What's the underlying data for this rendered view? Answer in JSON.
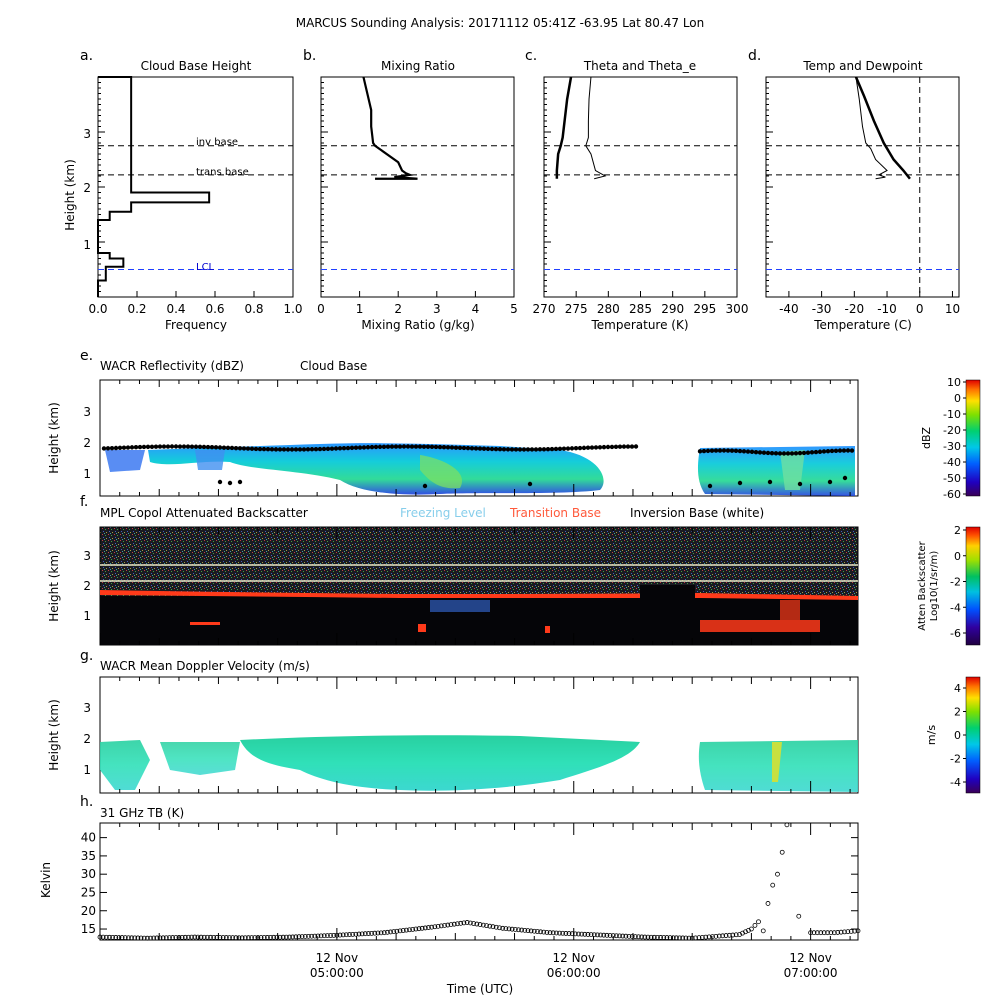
{
  "title": "MARCUS Sounding Analysis: 20171112 05:41Z   -63.95 Lat   80.47 Lon",
  "top_panels": {
    "y_ticks": [
      "1",
      "2",
      "3"
    ],
    "ylabel": "Height (km)",
    "line_labels": {
      "inv": "inv base",
      "trans": "trans base",
      "lcl": "LCL"
    },
    "line_heights_km": {
      "inv": 2.75,
      "trans": 2.22,
      "lcl": 0.5
    }
  },
  "chart_data": [
    {
      "type": "bar",
      "panel": "a.",
      "title": "Cloud Base Height",
      "xlabel": "Frequency",
      "ylabel": "Height (km)",
      "xlim": [
        0,
        1.0
      ],
      "ylim": [
        0,
        4
      ],
      "x_ticks": [
        "0.0",
        "0.2",
        "0.4",
        "0.6",
        "0.8",
        "1.0"
      ],
      "y_ticks": [
        "1",
        "2",
        "3"
      ],
      "orientation": "horizontal-step",
      "bin_edges_km": [
        0.0,
        0.3,
        0.55,
        0.7,
        0.8,
        1.4,
        1.55,
        1.72,
        1.9,
        4.0
      ],
      "values": [
        0.0,
        0.04,
        0.13,
        0.06,
        0.0,
        0.06,
        0.17,
        0.57,
        0.17,
        0.0
      ]
    },
    {
      "type": "line",
      "panel": "b.",
      "title": "Mixing Ratio",
      "xlabel": "Mixing Ratio (g/kg)",
      "xlim": [
        0,
        5
      ],
      "ylim": [
        0,
        4
      ],
      "x_ticks": [
        "0",
        "1",
        "2",
        "3",
        "4",
        "5"
      ],
      "series": [
        {
          "x": [
            1.1,
            1.2,
            1.3,
            1.3,
            1.35,
            1.4,
            1.5,
            2.0,
            2.1,
            2.2,
            2.3,
            1.9,
            2.5,
            1.4
          ],
          "y": [
            4.0,
            3.7,
            3.4,
            3.1,
            2.8,
            2.75,
            2.7,
            2.45,
            2.3,
            2.25,
            2.22,
            2.18,
            2.15,
            2.15
          ]
        }
      ]
    },
    {
      "type": "line",
      "panel": "c.",
      "title": "Theta and Theta_e",
      "xlabel": "Temperature (K)",
      "xlim": [
        270,
        300
      ],
      "ylim": [
        0,
        4
      ],
      "x_ticks": [
        "270",
        "275",
        "280",
        "285",
        "290",
        "295",
        "300"
      ],
      "series": [
        {
          "x": [
            274.2,
            273.6,
            273.2,
            272.9,
            272.6,
            272.2,
            272.0,
            272.0
          ],
          "y": [
            4.0,
            3.6,
            3.2,
            2.9,
            2.75,
            2.6,
            2.3,
            2.15
          ]
        },
        {
          "x": [
            277.3,
            277.0,
            276.9,
            276.9,
            276.5,
            277.3,
            278.0,
            279.5,
            277.8
          ],
          "y": [
            4.0,
            3.6,
            3.2,
            2.9,
            2.75,
            2.6,
            2.3,
            2.2,
            2.15
          ]
        }
      ]
    },
    {
      "type": "line",
      "panel": "d.",
      "title": "Temp and Dewpoint",
      "xlabel": "Temperature (C)",
      "xlim": [
        -47,
        12
      ],
      "ylim": [
        0,
        4
      ],
      "x_ticks": [
        "-40",
        "-30",
        "-20",
        "-10",
        "0",
        "10"
      ],
      "series": [
        {
          "x": [
            -19.5,
            -17.0,
            -14.0,
            -11.0,
            -8.0,
            -5.0,
            -3.0
          ],
          "y": [
            4.0,
            3.65,
            3.2,
            2.8,
            2.5,
            2.3,
            2.15
          ]
        },
        {
          "x": [
            -19.5,
            -18.5,
            -17.5,
            -16.5,
            -15.0,
            -13.5,
            -10.0,
            -12.5,
            -10.5,
            -13.5
          ],
          "y": [
            4.0,
            3.6,
            3.1,
            2.8,
            2.7,
            2.5,
            2.3,
            2.22,
            2.18,
            2.15
          ]
        }
      ]
    },
    {
      "type": "scatter",
      "panel": "h.",
      "title": "31 GHz TB (K)",
      "xlabel": "Time (UTC)",
      "ylabel": "Kelvin",
      "ylim": [
        12,
        44
      ],
      "y_ticks": [
        "15",
        "20",
        "25",
        "30",
        "35",
        "40"
      ],
      "x_hours": [
        4.0,
        4.2,
        4.4,
        4.6,
        4.8,
        5.0,
        5.2,
        5.4,
        5.55,
        5.7,
        5.9,
        6.1,
        6.3,
        6.5,
        6.6,
        6.7,
        6.75,
        6.78,
        6.8,
        6.82,
        6.84,
        6.86,
        6.88,
        6.9,
        6.95,
        7.0,
        7.1,
        7.2
      ],
      "values": [
        12.8,
        12.5,
        12.8,
        12.6,
        12.8,
        13.3,
        14.0,
        15.5,
        16.8,
        15.2,
        14.0,
        13.4,
        12.8,
        12.5,
        13.0,
        13.5,
        15.0,
        17.0,
        14.5,
        22.0,
        27.0,
        30.0,
        36.0,
        43.5,
        18.5,
        14.0,
        14.0,
        14.5
      ]
    }
  ],
  "time_axis": {
    "xlabel": "Time (UTC)",
    "start_hour": 4.0,
    "end_hour": 7.2,
    "major_ticks": [
      {
        "hour": 5.0,
        "date": "12 Nov",
        "time": "05:00:00"
      },
      {
        "hour": 6.0,
        "date": "12 Nov",
        "time": "06:00:00"
      },
      {
        "hour": 7.0,
        "date": "12 Nov",
        "time": "07:00:00"
      }
    ]
  },
  "panel_e": {
    "label": "e.",
    "title": "WACR Reflectivity (dBZ)",
    "subtitle": "Cloud Base",
    "ylabel": "Height (km)",
    "y_ticks": [
      "1",
      "2",
      "3"
    ],
    "colorbar": {
      "label": "dBZ",
      "ticks": [
        "10",
        "0",
        "-10",
        "-20",
        "-30",
        "-40",
        "-50",
        "-60"
      ]
    }
  },
  "panel_f": {
    "label": "f.",
    "title": "MPL Copol Attenuated Backscatter",
    "legend_freezing": "Freezing Level",
    "legend_transition": "Transition Base",
    "legend_inversion": "Inversion Base (white)",
    "legend_colors": {
      "freezing": "#87ceeb",
      "transition": "#ff5a3c"
    },
    "ylabel": "Height (km)",
    "y_ticks": [
      "1",
      "2",
      "3"
    ],
    "colorbar": {
      "label1": "Atten Backscatter",
      "label2": "Log10(1/sr/m)",
      "ticks": [
        "2",
        "0",
        "-2",
        "-4",
        "-6"
      ]
    }
  },
  "panel_g": {
    "label": "g.",
    "title": "WACR Mean Doppler Velocity (m/s)",
    "ylabel": "Height (km)",
    "y_ticks": [
      "1",
      "2",
      "3"
    ],
    "colorbar": {
      "label": "m/s",
      "ticks": [
        "4",
        "2",
        "0",
        "-2",
        "-4"
      ]
    }
  },
  "panel_h": {
    "label": "h.",
    "title": "31 GHz TB (K)",
    "ylabel": "Kelvin"
  }
}
